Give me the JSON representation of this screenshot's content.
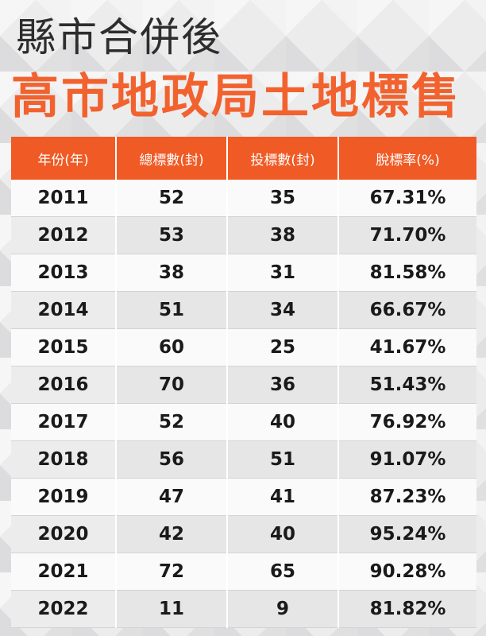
{
  "title_line1": "縣市合併後",
  "title_line2": "高市地政局土地標售",
  "colors": {
    "accent": "#f05a24",
    "title_dark": "#2d2d2d",
    "title_orange": "#f2622e"
  },
  "table": {
    "headers": [
      "年份(年)",
      "總標數(封)",
      "投標數(封)",
      "脫標率(%)"
    ],
    "rows": [
      [
        "2011",
        "52",
        "35",
        "67.31%"
      ],
      [
        "2012",
        "53",
        "38",
        "71.70%"
      ],
      [
        "2013",
        "38",
        "31",
        "81.58%"
      ],
      [
        "2014",
        "51",
        "34",
        "66.67%"
      ],
      [
        "2015",
        "60",
        "25",
        "41.67%"
      ],
      [
        "2016",
        "70",
        "36",
        "51.43%"
      ],
      [
        "2017",
        "52",
        "40",
        "76.92%"
      ],
      [
        "2018",
        "56",
        "51",
        "91.07%"
      ],
      [
        "2019",
        "47",
        "41",
        "87.23%"
      ],
      [
        "2020",
        "42",
        "40",
        "95.24%"
      ],
      [
        "2021",
        "72",
        "65",
        "90.28%"
      ],
      [
        "2022",
        "11",
        "9",
        "81.82%"
      ]
    ]
  },
  "chart_data": {
    "type": "table",
    "title": "縣市合併後 高市地政局土地標售",
    "columns": [
      "年份(年)",
      "總標數(封)",
      "投標數(封)",
      "脫標率(%)"
    ],
    "x": [
      2011,
      2012,
      2013,
      2014,
      2015,
      2016,
      2017,
      2018,
      2019,
      2020,
      2021,
      2022
    ],
    "series": [
      {
        "name": "總標數(封)",
        "values": [
          52,
          53,
          38,
          51,
          60,
          70,
          52,
          56,
          47,
          42,
          72,
          11
        ]
      },
      {
        "name": "投標數(封)",
        "values": [
          35,
          38,
          31,
          34,
          25,
          36,
          40,
          51,
          41,
          40,
          65,
          9
        ]
      },
      {
        "name": "脫標率(%)",
        "values": [
          67.31,
          71.7,
          81.58,
          66.67,
          41.67,
          51.43,
          76.92,
          91.07,
          87.23,
          95.24,
          90.28,
          81.82
        ]
      }
    ]
  }
}
